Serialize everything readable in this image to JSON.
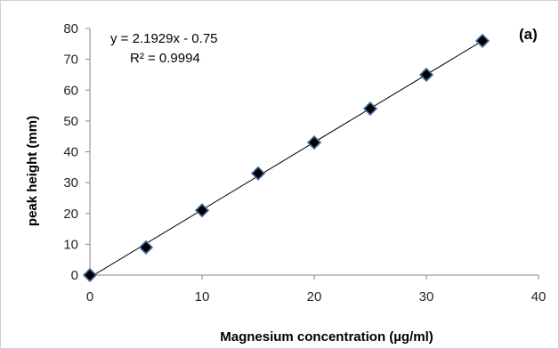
{
  "chart_data": {
    "type": "scatter",
    "x": [
      0,
      5,
      10,
      15,
      20,
      25,
      30,
      35
    ],
    "y": [
      0,
      9,
      21,
      33,
      43,
      54,
      65,
      76
    ],
    "xlabel": "Magnesium concentration (µg/ml)",
    "ylabel": "peak height (mm)",
    "xlim": [
      0,
      40
    ],
    "ylim": [
      0,
      80
    ],
    "xticks": [
      "0",
      "10",
      "20",
      "30",
      "40"
    ],
    "yticks": [
      "0",
      "10",
      "20",
      "30",
      "40",
      "50",
      "60",
      "70",
      "80"
    ],
    "grid": false,
    "legend": "none",
    "trendline": {
      "slope": 2.1929,
      "intercept": -0.75
    },
    "annotations": {
      "equation": "y = 2.1929x - 0.75",
      "r_squared": "R² = 0.9994",
      "panel_label": "(a)"
    },
    "colors": {
      "marker_fill": "#000000",
      "marker_edge": "#4a6fa5",
      "line": "#000000",
      "axis": "#868686"
    }
  }
}
